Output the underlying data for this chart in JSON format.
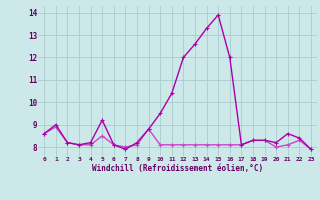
{
  "xlabel": "Windchill (Refroidissement éolien,°C)",
  "x_values": [
    0,
    1,
    2,
    3,
    4,
    5,
    6,
    7,
    8,
    9,
    10,
    11,
    12,
    13,
    14,
    15,
    16,
    17,
    18,
    19,
    20,
    21,
    22,
    23
  ],
  "series1": [
    8.6,
    9.0,
    8.2,
    8.1,
    8.2,
    9.2,
    8.1,
    7.9,
    8.2,
    8.8,
    9.5,
    10.4,
    12.0,
    12.6,
    13.3,
    13.9,
    12.0,
    8.1,
    8.3,
    8.3,
    8.2,
    8.6,
    8.4,
    7.9
  ],
  "series2": [
    8.6,
    8.9,
    8.2,
    8.1,
    8.1,
    8.5,
    8.1,
    8.0,
    8.1,
    8.8,
    8.1,
    8.1,
    8.1,
    8.1,
    8.1,
    8.1,
    8.1,
    8.1,
    8.3,
    8.3,
    8.0,
    8.1,
    8.3,
    7.9
  ],
  "line1_color": "#aa00aa",
  "line2_color": "#cc44cc",
  "marker_color": "#aa00aa",
  "bg_color": "#cce8e8",
  "grid_color": "#aacccc",
  "axis_color": "#660066",
  "ylim": [
    7.6,
    14.3
  ],
  "yticks": [
    8,
    9,
    10,
    11,
    12,
    13,
    14
  ],
  "xlim": [
    -0.5,
    23.5
  ],
  "line_width": 1.0,
  "marker_size": 3.0
}
